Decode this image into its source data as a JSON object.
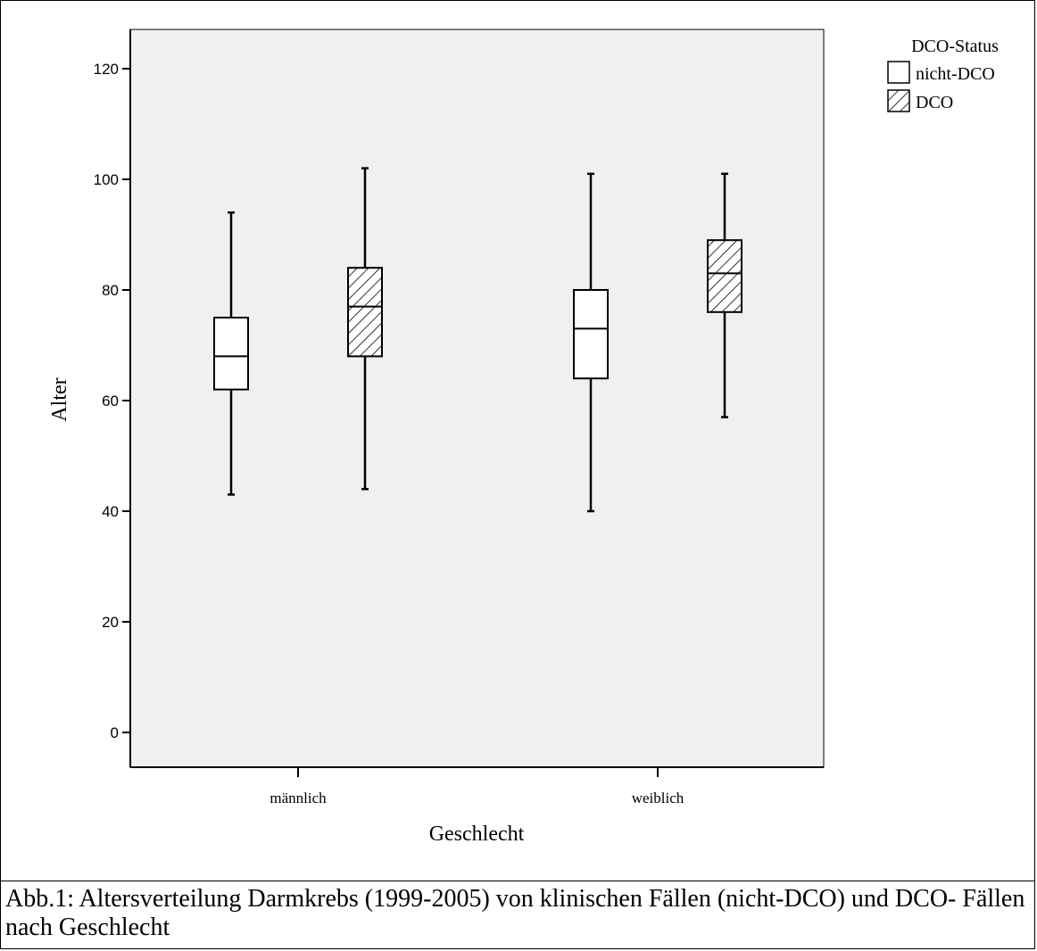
{
  "chart_data": {
    "type": "box",
    "categories": [
      "männlich",
      "weiblich"
    ],
    "xlabel": "Geschlecht",
    "ylabel": "Alter",
    "ylim": [
      -6,
      127
    ],
    "yticks": [
      0,
      20,
      40,
      60,
      80,
      100,
      120
    ],
    "grid": false,
    "legend": {
      "title": "DCO-Status",
      "placement": "top-right",
      "entries": [
        {
          "name": "nicht-DCO",
          "fill": "plain"
        },
        {
          "name": "DCO",
          "fill": "hatched"
        }
      ]
    },
    "series": [
      {
        "name": "nicht-DCO",
        "boxes": [
          {
            "category": "männlich",
            "min": 43,
            "q1": 62,
            "median": 68,
            "q3": 75,
            "max": 94
          },
          {
            "category": "weiblich",
            "min": 40,
            "q1": 64,
            "median": 73,
            "q3": 80,
            "max": 101
          }
        ]
      },
      {
        "name": "DCO",
        "boxes": [
          {
            "category": "männlich",
            "min": 44,
            "q1": 68,
            "median": 77,
            "q3": 84,
            "max": 102
          },
          {
            "category": "weiblich",
            "min": 57,
            "q1": 76,
            "median": 83,
            "q3": 89,
            "max": 101
          }
        ]
      }
    ],
    "colors": {
      "plot_background": "#f0f0f0",
      "box_fill": "#ffffff",
      "line": "#000000"
    }
  },
  "caption": "Abb.1: Altersverteilung Darmkrebs (1999-2005) von klinischen Fällen (nicht-DCO) und DCO- Fällen nach Geschlecht"
}
